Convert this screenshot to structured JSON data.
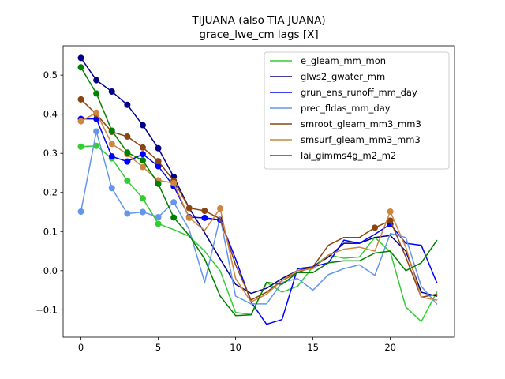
{
  "chart_data": {
    "type": "line",
    "title": "TIJUANA (also TIA JUANA)",
    "subtitle": "grace_lwe_cm lags [X]",
    "xlabel": "",
    "ylabel": "",
    "xlim": [
      -1.15,
      24.15
    ],
    "ylim": [
      -0.17,
      0.575
    ],
    "xticks": [
      0,
      5,
      10,
      15,
      20
    ],
    "yticks": [
      -0.1,
      0.0,
      0.1,
      0.2,
      0.3,
      0.4,
      0.5
    ],
    "ytick_labels": [
      "−0.1",
      "0.0",
      "0.1",
      "0.2",
      "0.3",
      "0.4",
      "0.5"
    ],
    "grid": false,
    "legend_position": "upper right",
    "marker_note": "markers drawn on significant lags only",
    "series": [
      {
        "name": "e_gleam_mm_mon",
        "color": "#32cd32",
        "values": [
          0.317,
          0.319,
          0.287,
          0.23,
          0.185,
          0.12,
          0.105,
          0.088,
          0.05,
          0.0,
          -0.107,
          -0.112,
          -0.03,
          -0.055,
          -0.04,
          0.01,
          0.04,
          0.032,
          0.035,
          0.085,
          0.048,
          -0.093,
          -0.13,
          -0.055
        ],
        "markers": [
          0,
          1,
          2,
          3,
          4,
          5
        ]
      },
      {
        "name": "glws2_gwater_mm",
        "color": "#00008b",
        "values": [
          0.544,
          0.487,
          0.458,
          0.424,
          0.372,
          0.313,
          0.24,
          0.16,
          0.097,
          0.03,
          -0.035,
          -0.058,
          -0.045,
          -0.02,
          0.0,
          0.01,
          0.035,
          0.07,
          0.07,
          0.085,
          0.09,
          0.05,
          -0.055,
          -0.065
        ],
        "markers": [
          0,
          1,
          2,
          3,
          4,
          5,
          6
        ]
      },
      {
        "name": "grun_ens_runoff_mm_day",
        "color": "#0000ff",
        "values": [
          0.388,
          0.388,
          0.292,
          0.279,
          0.298,
          0.267,
          0.216,
          0.137,
          0.135,
          0.13,
          0.03,
          -0.08,
          -0.137,
          -0.125,
          0.005,
          0.01,
          0.02,
          0.078,
          0.07,
          0.093,
          0.119,
          0.07,
          0.065,
          -0.03
        ],
        "markers": [
          0,
          1,
          2,
          3,
          4,
          5,
          6,
          7,
          8,
          9,
          20
        ]
      },
      {
        "name": "prec_fldas_mm_day",
        "color": "#6495ed",
        "values": [
          0.151,
          0.356,
          0.211,
          0.146,
          0.15,
          0.137,
          0.175,
          0.105,
          -0.03,
          0.137,
          -0.065,
          -0.085,
          -0.085,
          -0.03,
          -0.02,
          -0.05,
          -0.01,
          0.005,
          0.015,
          -0.012,
          0.095,
          0.085,
          -0.04,
          -0.085
        ],
        "markers": [
          0,
          1,
          2,
          3,
          4,
          5,
          6
        ]
      },
      {
        "name": "smroot_gleam_mm3_mm3",
        "color": "#8b4513",
        "values": [
          0.438,
          0.4,
          0.355,
          0.343,
          0.315,
          0.28,
          0.23,
          0.16,
          0.153,
          0.133,
          0.015,
          -0.075,
          -0.055,
          -0.025,
          -0.005,
          0.01,
          0.065,
          0.085,
          0.085,
          0.11,
          0.128,
          0.035,
          -0.068,
          -0.06
        ],
        "markers": [
          0,
          1,
          2,
          3,
          4,
          5,
          6,
          7,
          8,
          19,
          20
        ]
      },
      {
        "name": "smsurf_gleam_mm3_mm3",
        "color": "#cd853f",
        "values": [
          0.382,
          0.404,
          0.324,
          0.298,
          0.265,
          0.231,
          0.224,
          0.135,
          0.103,
          0.159,
          -0.02,
          -0.08,
          -0.06,
          -0.025,
          0.0,
          0.005,
          0.04,
          0.055,
          0.06,
          0.05,
          0.151,
          0.06,
          -0.068,
          -0.075
        ],
        "markers": [
          0,
          1,
          2,
          3,
          4,
          5,
          6,
          7,
          9,
          20
        ]
      },
      {
        "name": "lai_gimms4g_m2_m2",
        "color": "#008000",
        "values": [
          0.52,
          0.453,
          0.358,
          0.302,
          0.282,
          0.222,
          0.136,
          0.09,
          0.03,
          -0.065,
          -0.115,
          -0.113,
          -0.03,
          -0.035,
          -0.005,
          -0.005,
          0.02,
          0.025,
          0.025,
          0.045,
          0.05,
          0.0,
          0.02,
          0.077
        ],
        "markers": [
          0,
          1,
          2,
          3,
          4,
          5,
          6
        ]
      }
    ]
  }
}
